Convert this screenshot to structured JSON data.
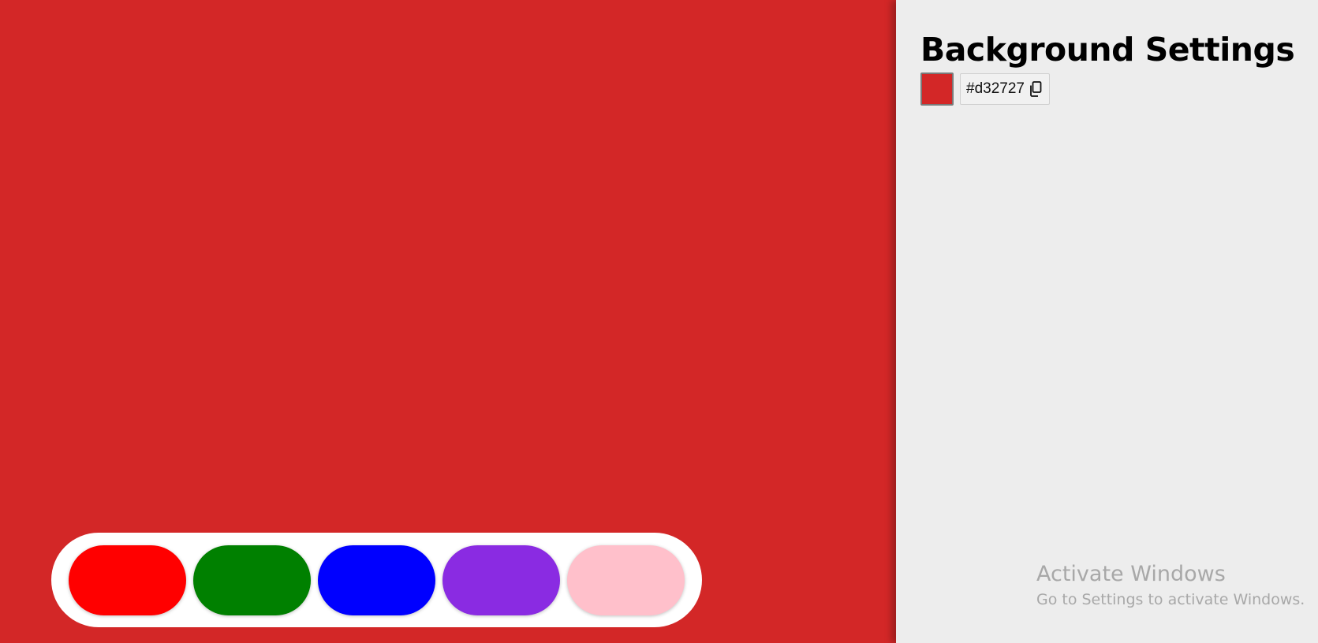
{
  "background": {
    "color": "#d32727"
  },
  "settings": {
    "title": "Background Settings",
    "current_hex": "#d32727",
    "copy_icon": "copy-icon"
  },
  "palette": {
    "swatches": [
      {
        "name": "red",
        "color": "#ff0000"
      },
      {
        "name": "green",
        "color": "#008000"
      },
      {
        "name": "blue",
        "color": "#0000ff"
      },
      {
        "name": "purple",
        "color": "#8a2be2"
      },
      {
        "name": "pink",
        "color": "#ffc0cb"
      }
    ]
  },
  "os_overlay": {
    "title": "Activate Windows",
    "subtitle": "Go to Settings to activate Windows."
  }
}
